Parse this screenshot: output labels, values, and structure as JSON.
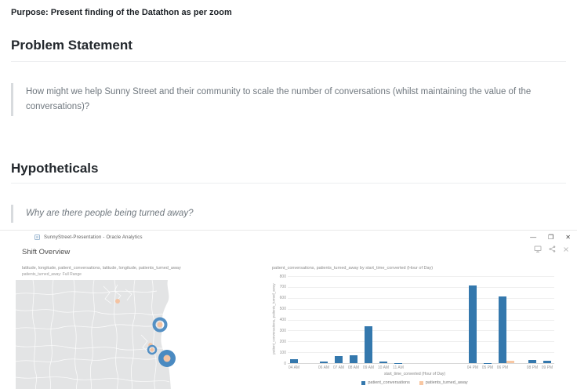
{
  "document": {
    "purpose": "Purpose: Present finding of the Datathon as per zoom",
    "problem": {
      "heading": "Problem Statement",
      "quote": "How might we help Sunny Street and their community to scale the number of conversations (whilst maintaining the value of the conversations)?"
    },
    "hypotheticals": {
      "heading": "Hypotheticals",
      "quote": "Why are there people being turned away?"
    }
  },
  "window": {
    "title": "SunnyStreet-Presentation - Oracle Analytics",
    "controls": {
      "minimize": "—",
      "maximize": "❐",
      "close": "✕"
    },
    "toolbar_icons": [
      "present-icon",
      "share-icon",
      "close-icon"
    ],
    "page_title": "Shift Overview"
  },
  "map_widget": {
    "title": "latitude, longitude, patient_conversations, latitude, longitude, patients_turned_away",
    "subtitle": "patients_turned_away: Full Range",
    "colors": {
      "land": "#e3e4e5",
      "border": "#ffffff",
      "ring": "#5490c4",
      "fill": "#4a8ac1",
      "dot": "#f4c3a2"
    },
    "points": [
      {
        "type": "dot",
        "x": 130,
        "y": 27,
        "r": 3
      },
      {
        "type": "ring",
        "x": 184,
        "y": 57,
        "r": 7.5,
        "stroke": 4,
        "inner_r": 3.5
      },
      {
        "type": "dot",
        "x": 172,
        "y": 83,
        "r": 2.8
      },
      {
        "type": "ring",
        "x": 174,
        "y": 89,
        "r": 5,
        "stroke": 2.5,
        "inner_r": 2.5
      },
      {
        "type": "filled",
        "x": 193,
        "y": 100,
        "r": 11,
        "inner_r": 4.5
      }
    ]
  },
  "chart_data": {
    "type": "bar",
    "title": "patient_conversations, patients_turned_away by start_time_converted (Hour of Day)",
    "xlabel": "start_time_converted (Hour of Day)",
    "ylabel": "patient_conversations, patients_turned_away",
    "ylim": [
      0,
      800
    ],
    "yticks": [
      0,
      100,
      200,
      300,
      400,
      500,
      600,
      700,
      800
    ],
    "x_axis": {
      "start_hour": 4,
      "end_hour": 21,
      "unit": "hour of day"
    },
    "grid": true,
    "legend_position": "bottom",
    "series": [
      {
        "name": "patient_conversations",
        "color": "#3478ad"
      },
      {
        "name": "patients_turned_away",
        "color": "#f8c7a2"
      }
    ],
    "categories": [
      "04 AM",
      "06 AM",
      "07 AM",
      "08 AM",
      "09 AM",
      "10 AM",
      "11 AM",
      "04 PM",
      "05 PM",
      "06 PM",
      "08 PM",
      "09 PM"
    ],
    "points": [
      {
        "hour": 4,
        "label": "04 AM",
        "patient_conversations": 35,
        "patients_turned_away": 0
      },
      {
        "hour": 6,
        "label": "06 AM",
        "patient_conversations": 15,
        "patients_turned_away": 0
      },
      {
        "hour": 7,
        "label": "07 AM",
        "patient_conversations": 65,
        "patients_turned_away": 0
      },
      {
        "hour": 8,
        "label": "08 AM",
        "patient_conversations": 75,
        "patients_turned_away": 0
      },
      {
        "hour": 9,
        "label": "09 AM",
        "patient_conversations": 340,
        "patients_turned_away": 0
      },
      {
        "hour": 10,
        "label": "10 AM",
        "patient_conversations": 18,
        "patients_turned_away": 0
      },
      {
        "hour": 11,
        "label": "11 AM",
        "patient_conversations": 2,
        "patients_turned_away": 0
      },
      {
        "hour": 16,
        "label": "04 PM",
        "patient_conversations": 710,
        "patients_turned_away": 0
      },
      {
        "hour": 17,
        "label": "05 PM",
        "patient_conversations": 2,
        "patients_turned_away": 0
      },
      {
        "hour": 18,
        "label": "06 PM",
        "patient_conversations": 615,
        "patients_turned_away": 20
      },
      {
        "hour": 20,
        "label": "08 PM",
        "patient_conversations": 28,
        "patients_turned_away": 0
      },
      {
        "hour": 21,
        "label": "09 PM",
        "patient_conversations": 22,
        "patients_turned_away": 0
      }
    ],
    "legend": [
      "patient_conversations",
      "patients_turned_away"
    ]
  }
}
